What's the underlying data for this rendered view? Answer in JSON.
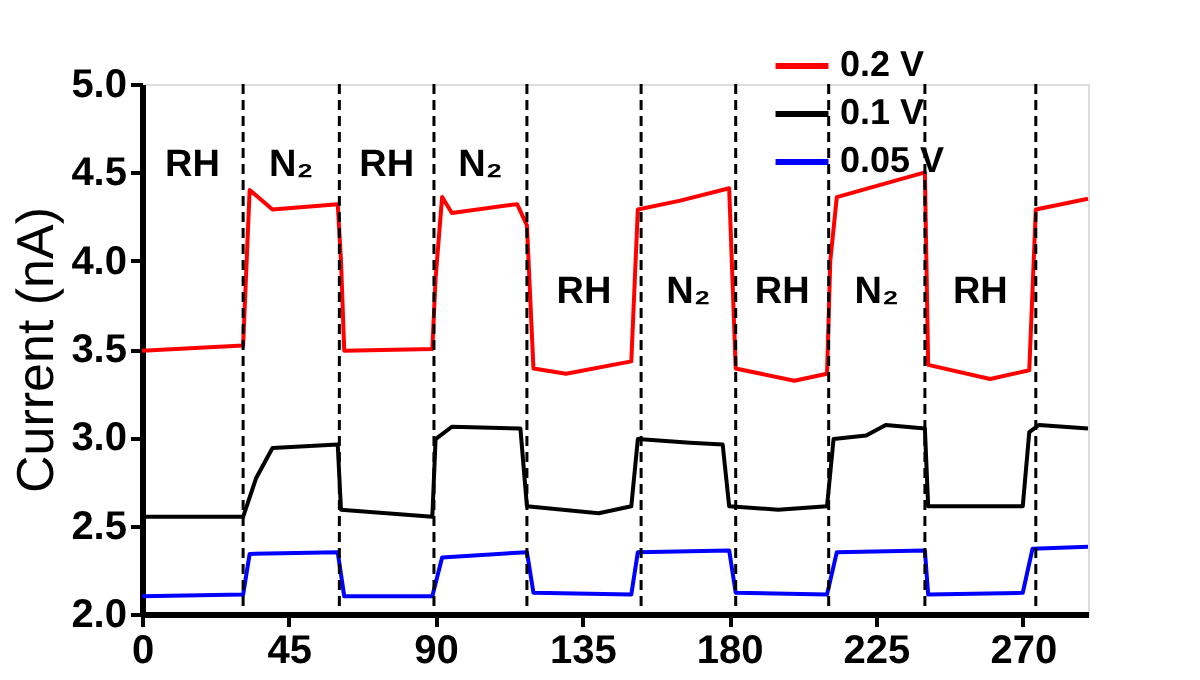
{
  "chart_data": {
    "type": "line",
    "ylabel": "Current (nA)",
    "xlim": [
      0,
      290
    ],
    "ylim": [
      2,
      5
    ],
    "xticks": [
      0,
      45,
      90,
      135,
      180,
      225,
      270
    ],
    "yticks": [
      {
        "value": 2,
        "label": "2.0"
      },
      2.5,
      {
        "value": 3,
        "label": "3.0"
      },
      3.5,
      {
        "value": 4,
        "label": "4.0"
      },
      4.5,
      {
        "value": 5,
        "label": "5.0"
      }
    ],
    "grid": false,
    "legend": "top right",
    "marker": "none",
    "line_style": "solid",
    "series": [
      {
        "name": "0.2 V",
        "color": "#ff0000",
        "x": [
          0,
          31,
          33,
          40,
          60,
          61,
          62,
          89,
          90,
          92,
          95,
          115,
          118,
          120,
          130,
          150,
          152,
          165,
          180,
          182,
          200,
          210,
          211,
          213,
          240,
          241,
          260,
          272,
          274,
          290
        ],
        "values": [
          3.49,
          3.52,
          4.4,
          4.29,
          4.32,
          4.0,
          3.49,
          3.5,
          3.9,
          4.36,
          4.27,
          4.32,
          4.2,
          3.39,
          3.36,
          3.43,
          4.29,
          4.34,
          4.41,
          3.39,
          3.32,
          3.36,
          4.0,
          4.36,
          4.5,
          3.41,
          3.33,
          3.38,
          4.29,
          4.35
        ]
      },
      {
        "name": "0.1 V",
        "color": "#000000",
        "x": [
          0,
          31,
          35,
          40,
          60,
          61,
          89,
          90,
          95,
          116,
          118,
          140,
          150,
          152,
          168,
          178,
          180,
          195,
          210,
          212,
          222,
          228,
          240,
          241,
          270,
          272,
          275,
          290
        ],
        "values": [
          2.55,
          2.55,
          2.77,
          2.94,
          2.96,
          2.59,
          2.55,
          2.99,
          3.06,
          3.05,
          2.61,
          2.57,
          2.61,
          2.99,
          2.97,
          2.96,
          2.61,
          2.59,
          2.61,
          2.99,
          3.01,
          3.07,
          3.05,
          2.61,
          2.61,
          3.03,
          3.07,
          3.05
        ]
      },
      {
        "name": "0.05 V",
        "color": "#0000ff",
        "x": [
          0,
          31,
          33,
          60,
          62,
          89,
          92,
          118,
          120,
          150,
          152,
          180,
          182,
          210,
          213,
          240,
          241,
          270,
          273,
          290
        ],
        "values": [
          2.1,
          2.11,
          2.34,
          2.35,
          2.1,
          2.1,
          2.32,
          2.35,
          2.12,
          2.11,
          2.35,
          2.36,
          2.12,
          2.11,
          2.35,
          2.36,
          2.11,
          2.12,
          2.37,
          2.38
        ]
      }
    ],
    "ref_lines": [
      {
        "axis": "x",
        "value": 31,
        "color": "#000000",
        "line_style": "dashed"
      },
      {
        "axis": "x",
        "value": 60.5,
        "color": "#000000",
        "line_style": "dashed"
      },
      {
        "axis": "x",
        "value": 89.5,
        "color": "#000000",
        "line_style": "dashed"
      },
      {
        "axis": "x",
        "value": 118,
        "color": "#000000",
        "line_style": "dashed"
      },
      {
        "axis": "x",
        "value": 153,
        "color": "#000000",
        "line_style": "dashed"
      },
      {
        "axis": "x",
        "value": 182,
        "color": "#000000",
        "line_style": "dashed"
      },
      {
        "axis": "x",
        "value": 210.5,
        "color": "#000000",
        "line_style": "dashed"
      },
      {
        "axis": "x",
        "value": 240,
        "color": "#000000",
        "line_style": "dashed"
      },
      {
        "axis": "x",
        "value": 274,
        "color": "#000000",
        "line_style": "dashed"
      }
    ],
    "annotations": [
      "RH",
      "N₂",
      "RH",
      "N₂",
      "RH",
      "N₂",
      "RH",
      "N₂",
      "RH"
    ]
  }
}
